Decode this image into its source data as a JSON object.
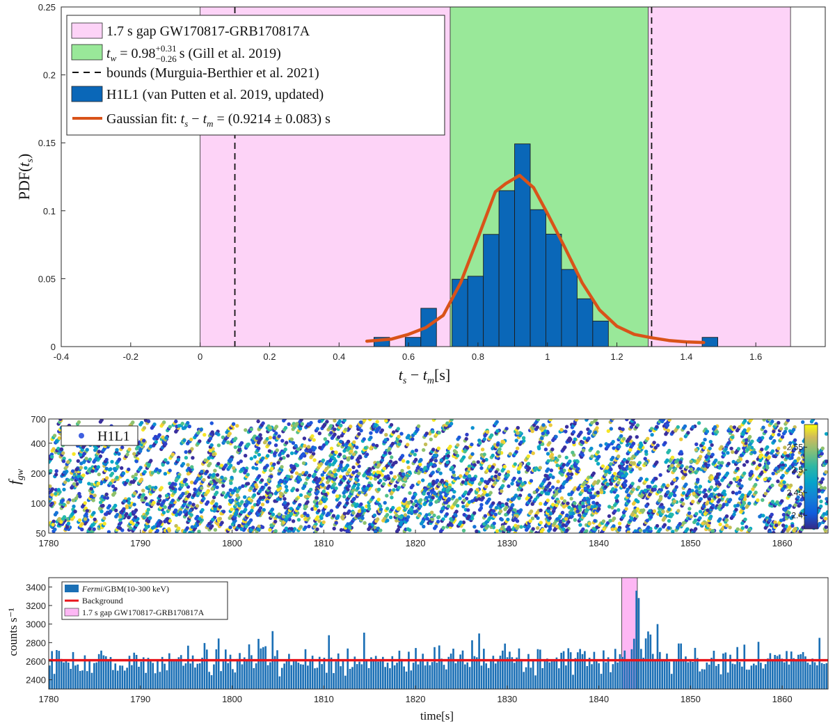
{
  "chart_data": [
    {
      "type": "bar",
      "name": "histogram",
      "xlim": [
        -0.4,
        1.8
      ],
      "ylim": [
        0,
        0.25
      ],
      "xticks": [
        "-0.4",
        "-0.2",
        "0",
        "0.2",
        "0.4",
        "0.6",
        "0.8",
        "1",
        "1.2",
        "1.4",
        "1.6"
      ],
      "xtick_values": [
        -0.4,
        -0.2,
        0,
        0.2,
        0.4,
        0.6,
        0.8,
        1.0,
        1.2,
        1.4,
        1.6
      ],
      "yticks": [
        "0",
        "0.05",
        "0.1",
        "0.15",
        "0.2",
        "0.25"
      ],
      "ytick_values": [
        0,
        0.05,
        0.1,
        0.15,
        0.2,
        0.25
      ],
      "xlabel": "t_s − t_m[s]",
      "ylabel": "PDF(t_s)",
      "grid": false,
      "legend_position": "top-left",
      "shaded_regions": [
        {
          "label": "1.7 s gap GW170817-GRB170817A",
          "from": 0,
          "to": 1.7,
          "color": "#fdd3f7"
        },
        {
          "label": "t_w = 0.98 (+0.31/−0.26) s (Gill et al. 2019)",
          "from": 0.72,
          "to": 1.29,
          "color": "#99e899"
        }
      ],
      "vlines": {
        "label": "bounds (Murguia-Berthier et al. 2021)",
        "x": [
          0.1,
          1.3
        ]
      },
      "bars": {
        "label": "H1L1 (van Putten et al. 2019, updated)",
        "color": "#0a67b8",
        "bin_width": 0.045,
        "centers": [
          0.523,
          0.613,
          0.658,
          0.748,
          0.793,
          0.838,
          0.883,
          0.928,
          0.973,
          1.018,
          1.063,
          1.108,
          1.153,
          1.468
        ],
        "values": [
          0.0068,
          0.0068,
          0.0282,
          0.0496,
          0.0518,
          0.0826,
          0.1148,
          0.1492,
          0.1008,
          0.0828,
          0.0568,
          0.0352,
          0.0188,
          0.0068
        ]
      },
      "fit": {
        "label": "Gaussian fit: t_s − t_m = (0.9214 ± 0.083) s",
        "color": "#d95319",
        "x": [
          0.48,
          0.55,
          0.6,
          0.65,
          0.7,
          0.75,
          0.8,
          0.85,
          0.88,
          0.92,
          0.96,
          1.0,
          1.05,
          1.1,
          1.15,
          1.2,
          1.25,
          1.3,
          1.35,
          1.4,
          1.45
        ],
        "y": [
          0.004,
          0.0055,
          0.009,
          0.014,
          0.023,
          0.047,
          0.08,
          0.114,
          0.12,
          0.126,
          0.117,
          0.098,
          0.073,
          0.047,
          0.027,
          0.015,
          0.009,
          0.0065,
          0.0045,
          0.0035,
          0.003
        ]
      },
      "legend": [
        {
          "kind": "patch",
          "color": "#fdd3f7",
          "text": "1.7 s gap GW170817-GRB170817A"
        },
        {
          "kind": "patch",
          "color": "#99e899",
          "text": "t_w = 0.98 (+0.31/−0.26) s (Gill et al. 2019)"
        },
        {
          "kind": "dash",
          "color": "#000000",
          "text": "bounds (Murguia-Berthier et al. 2021)"
        },
        {
          "kind": "patch",
          "color": "#0a67b8",
          "text": "H1L1 (van Putten et al. 2019, updated)"
        },
        {
          "kind": "line",
          "color": "#d95319",
          "text": "Gaussian fit: t_s − t_m = (0.9214 ± 0.083) s"
        }
      ],
      "legend_math": {
        "tw_value": "0.98",
        "tw_sup": "+0.31",
        "tw_sub": "−0.26",
        "tw_suffix": "s (Gill et al. 2019)",
        "fit_prefix": "Gaussian fit:",
        "fit_value": "= (0.9214 ± 0.083) s"
      }
    },
    {
      "type": "scatter",
      "name": "spectrogram",
      "xlim": [
        1780,
        1865
      ],
      "ylim": [
        50,
        700
      ],
      "yscale": "log",
      "xticks": [
        "1780",
        "1790",
        "1800",
        "1810",
        "1820",
        "1830",
        "1840",
        "1850",
        "1860"
      ],
      "xtick_values": [
        1780,
        1790,
        1800,
        1810,
        1820,
        1830,
        1840,
        1850,
        1860
      ],
      "yticks": [
        "50",
        "100",
        "200",
        "400",
        "700"
      ],
      "ytick_values": [
        50,
        100,
        200,
        400,
        700
      ],
      "ylabel": "f_gw",
      "legend": [
        {
          "kind": "dot",
          "color": "#3f5fe0",
          "text": "H1L1"
        }
      ],
      "legend_position": "top-left",
      "colorbar": {
        "range": [
          2.37,
          2.6
        ],
        "ticks": [
          "2.4",
          "2.45",
          "2.5",
          "2.55"
        ],
        "tick_values": [
          2.4,
          2.45,
          2.5,
          2.55
        ],
        "colormap": "parula"
      },
      "point_count": 2600,
      "track": {
        "x_from": 1836,
        "x_to": 1844,
        "y_from": 65,
        "y_to": 260
      }
    },
    {
      "type": "bar",
      "name": "lightcurve",
      "xlim": [
        1780,
        1865
      ],
      "ylim": [
        2300,
        3500
      ],
      "xticks": [
        "1780",
        "1790",
        "1800",
        "1810",
        "1820",
        "1830",
        "1840",
        "1850",
        "1860"
      ],
      "xtick_values": [
        1780,
        1790,
        1800,
        1810,
        1820,
        1830,
        1840,
        1850,
        1860
      ],
      "yticks": [
        "2400",
        "2600",
        "2800",
        "3000",
        "3200",
        "3400"
      ],
      "ytick_values": [
        2400,
        2600,
        2800,
        3000,
        3200,
        3400
      ],
      "xlabel": "time[s]",
      "ylabel": "counts s⁻¹",
      "bin_width": 0.256,
      "background": 2610,
      "gap": {
        "from": 1842.5,
        "to": 1844.2
      },
      "bar_color": "#1a6fb5",
      "background_color": "#e8141b",
      "gap_color": "#fdb7f4",
      "legend_position": "top-left",
      "legend": [
        {
          "kind": "patch",
          "color": "#1a6fb5",
          "text_italic": "Fermi",
          "text": "/GBM(10-300 keV)"
        },
        {
          "kind": "line",
          "color": "#e8141b",
          "text": "Background"
        },
        {
          "kind": "patch",
          "color": "#fdb7f4",
          "text": "1.7 s gap GW170817-GRB170817A"
        }
      ],
      "peaks": [
        {
          "x": 1843.9,
          "y": 3360
        },
        {
          "x": 1844.1,
          "y": 3280
        },
        {
          "x": 1846.3,
          "y": 3000
        },
        {
          "x": 1845.2,
          "y": 2920
        },
        {
          "x": 1810.4,
          "y": 2880
        }
      ]
    }
  ]
}
